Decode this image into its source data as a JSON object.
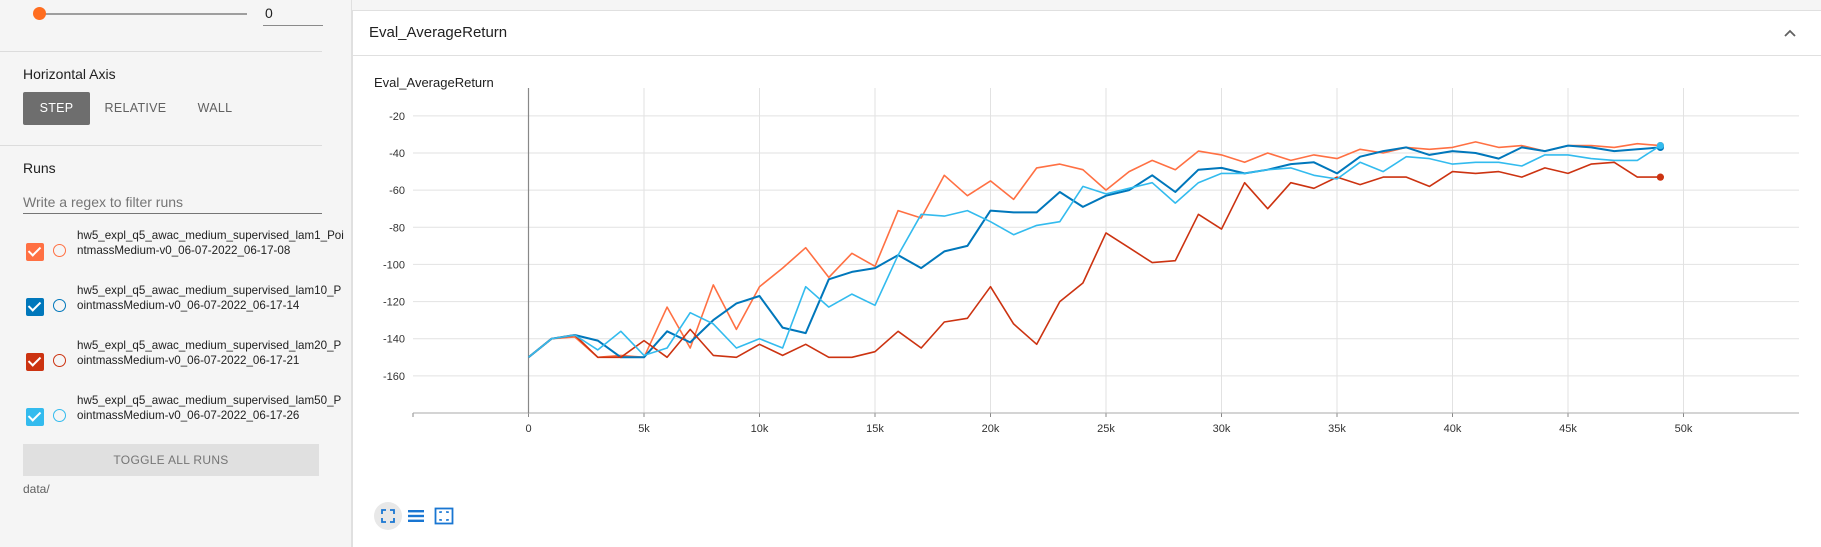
{
  "sidebar": {
    "smoothing": {
      "value": "0"
    },
    "horizontal_axis": {
      "title": "Horizontal Axis",
      "options": [
        "STEP",
        "RELATIVE",
        "WALL"
      ],
      "selected": "STEP"
    },
    "runs": {
      "title": "Runs",
      "filter_placeholder": "Write a regex to filter runs",
      "items": [
        {
          "label": "hw5_expl_q5_awac_medium_supervised_lam1_PointmassMedium-v0_06-07-2022_06-17-08",
          "color": "#ff7043",
          "checked": true
        },
        {
          "label": "hw5_expl_q5_awac_medium_supervised_lam10_PointmassMedium-v0_06-07-2022_06-17-14",
          "color": "#0077bb",
          "checked": true
        },
        {
          "label": "hw5_expl_q5_awac_medium_supervised_lam20_PointmassMedium-v0_06-07-2022_06-17-21",
          "color": "#cc3311",
          "checked": true
        },
        {
          "label": "hw5_expl_q5_awac_medium_supervised_lam50_PointmassMedium-v0_06-07-2022_06-17-26",
          "color": "#33bbee",
          "checked": true
        }
      ],
      "toggle_label": "TOGGLE ALL RUNS",
      "data_dir": "data/"
    }
  },
  "card": {
    "title": "Eval_AverageReturn",
    "chart_title": "Eval_AverageReturn"
  },
  "chart_data": {
    "type": "line",
    "title": "Eval_AverageReturn",
    "xlabel": "",
    "ylabel": "",
    "xlim": [
      -5000,
      55000
    ],
    "ylim": [
      -180,
      -5
    ],
    "x_ticks": [
      0,
      5000,
      10000,
      15000,
      20000,
      25000,
      30000,
      35000,
      40000,
      45000,
      50000
    ],
    "x_tick_labels": [
      "0",
      "5k",
      "10k",
      "15k",
      "20k",
      "25k",
      "30k",
      "35k",
      "40k",
      "45k",
      "50k"
    ],
    "y_ticks": [
      -20,
      -40,
      -60,
      -80,
      -100,
      -120,
      -140,
      -160
    ],
    "y_tick_labels": [
      "-20",
      "-40",
      "-60",
      "-80",
      "-100",
      "-120",
      "-140",
      "-160"
    ],
    "grid": true,
    "x": [
      0,
      1000,
      2000,
      3000,
      4000,
      5000,
      6000,
      7000,
      8000,
      9000,
      10000,
      11000,
      12000,
      13000,
      14000,
      15000,
      16000,
      17000,
      18000,
      19000,
      20000,
      21000,
      22000,
      23000,
      24000,
      25000,
      26000,
      27000,
      28000,
      29000,
      30000,
      31000,
      32000,
      33000,
      34000,
      35000,
      36000,
      37000,
      38000,
      39000,
      40000,
      41000,
      42000,
      43000,
      44000,
      45000,
      46000,
      47000,
      48000,
      49000
    ],
    "series": [
      {
        "color": "#ff7043",
        "values": [
          -150,
          -140,
          -139,
          -150,
          -149,
          -150,
          -123,
          -145,
          -111,
          -135,
          -112,
          -102,
          -91,
          -107,
          -94,
          -101,
          -71,
          -75,
          -52,
          -63,
          -55,
          -65,
          -48,
          -46,
          -49,
          -60,
          -50,
          -44,
          -49,
          -39,
          -41,
          -45,
          -40,
          -44,
          -41,
          -43,
          -38,
          -40,
          -37,
          -38,
          -37,
          -34,
          -37,
          -36,
          -39,
          -36,
          -36,
          -37,
          -35,
          -36
        ]
      },
      {
        "color": "#0077bb",
        "values": [
          -150,
          -140,
          -138,
          -141,
          -150,
          -150,
          -136,
          -142,
          -130,
          -121,
          -117,
          -134,
          -137,
          -108,
          -104,
          -102,
          -95,
          -102,
          -93,
          -90,
          -71,
          -72,
          -72,
          -61,
          -69,
          -63,
          -60,
          -52,
          -61,
          -49,
          -48,
          -51,
          -49,
          -46,
          -45,
          -51,
          -42,
          -39,
          -37,
          -41,
          -39,
          -40,
          -43,
          -37,
          -39,
          -36,
          -37,
          -39,
          -38,
          -37
        ]
      },
      {
        "color": "#cc3311",
        "values": [
          -150,
          -140,
          -138,
          -150,
          -150,
          -141,
          -150,
          -135,
          -149,
          -150,
          -143,
          -149,
          -143,
          -150,
          -150,
          -147,
          -136,
          -145,
          -131,
          -129,
          -112,
          -132,
          -143,
          -120,
          -110,
          -83,
          -91,
          -99,
          -98,
          -73,
          -81,
          -56,
          -70,
          -56,
          -59,
          -53,
          -57,
          -53,
          -53,
          -58,
          -50,
          -51,
          -50,
          -53,
          -48,
          -51,
          -46,
          -45,
          -53,
          -53
        ]
      },
      {
        "color": "#33bbee",
        "values": [
          -150,
          -140,
          -138,
          -146,
          -136,
          -149,
          -145,
          -126,
          -132,
          -145,
          -140,
          -145,
          -112,
          -123,
          -116,
          -122,
          -95,
          -73,
          -74,
          -71,
          -77,
          -84,
          -79,
          -77,
          -58,
          -62,
          -59,
          -56,
          -67,
          -56,
          -51,
          -51,
          -49,
          -48,
          -52,
          -54,
          -45,
          -50,
          -42,
          -43,
          -46,
          -45,
          -45,
          -47,
          -41,
          -41,
          -43,
          -44,
          -44,
          -36
        ]
      }
    ]
  },
  "toolbar": {
    "icons": [
      "fullscreen-icon",
      "data-table-icon",
      "fit-domain-icon"
    ],
    "accent": "#1976d2"
  }
}
